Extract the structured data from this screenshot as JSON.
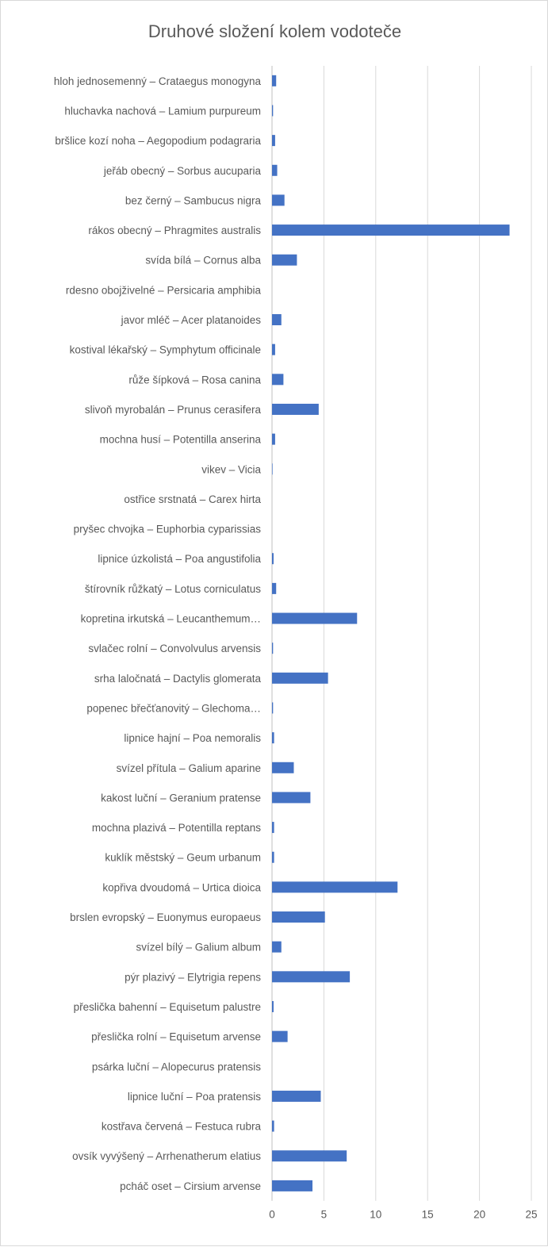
{
  "chart_data": {
    "type": "bar",
    "orientation": "horizontal",
    "title": "Druhové složení kolem vodoteče",
    "xlabel": "",
    "ylabel": "",
    "xlim": [
      0,
      25
    ],
    "x_ticks": [
      0,
      5,
      10,
      15,
      20,
      25
    ],
    "grid": true,
    "legend": "none",
    "bar_color": "#4472c4",
    "categories": [
      "hloh jednosemenný – Crataegus monogyna",
      "hluchavka nachová – Lamium purpureum",
      "bršlice kozí noha – Aegopodium podagraria",
      "jeřáb obecný – Sorbus aucuparia",
      "bez černý – Sambucus nigra",
      "rákos obecný – Phragmites australis",
      "svída bílá – Cornus alba",
      "rdesno obojživelné – Persicaria amphibia",
      "javor mléč – Acer platanoides",
      "kostival lékařský – Symphytum officinale",
      "růže šípková – Rosa canina",
      "slivoň myrobalán – Prunus cerasifera",
      "mochna husí – Potentilla anserina",
      "vikev – Vicia",
      "ostřice srstnatá – Carex hirta",
      "pryšec chvojka – Euphorbia cyparissias",
      "lipnice úzkolistá – Poa angustifolia",
      "štírovník růžkatý – Lotus corniculatus",
      "kopretina irkutská – Leucanthemum…",
      "svlačec rolní – Convolvulus arvensis",
      "srha laločnatá – Dactylis glomerata",
      "popenec břečťanovitý – Glechoma…",
      "lipnice hajní – Poa nemoralis",
      "svízel přítula – Galium aparine",
      "kakost luční – Geranium pratense",
      "mochna plazivá – Potentilla reptans",
      "kuklík městský – Geum urbanum",
      "kopřiva dvoudomá – Urtica dioica",
      "brslen evropský – Euonymus europaeus",
      "svízel bílý – Galium album",
      "pýr plazivý – Elytrigia repens",
      "přeslička bahenní – Equisetum palustre",
      "přeslička rolní – Equisetum arvense",
      "psárka luční – Alopecurus pratensis",
      "lipnice luční – Poa pratensis",
      "kostřava červená – Festuca rubra",
      "ovsík vyvýšený – Arrhenatherum elatius",
      "pcháč oset – Cirsium arvense"
    ],
    "values": [
      0.4,
      0.1,
      0.3,
      0.5,
      1.2,
      22.9,
      2.4,
      0,
      0.9,
      0.3,
      1.1,
      4.5,
      0.3,
      0.05,
      0,
      0,
      0.15,
      0.4,
      8.2,
      0.1,
      5.4,
      0.1,
      0.2,
      2.1,
      3.7,
      0.2,
      0.2,
      12.1,
      5.1,
      0.9,
      7.5,
      0.15,
      1.5,
      0,
      4.7,
      0.2,
      7.2,
      3.9
    ]
  }
}
